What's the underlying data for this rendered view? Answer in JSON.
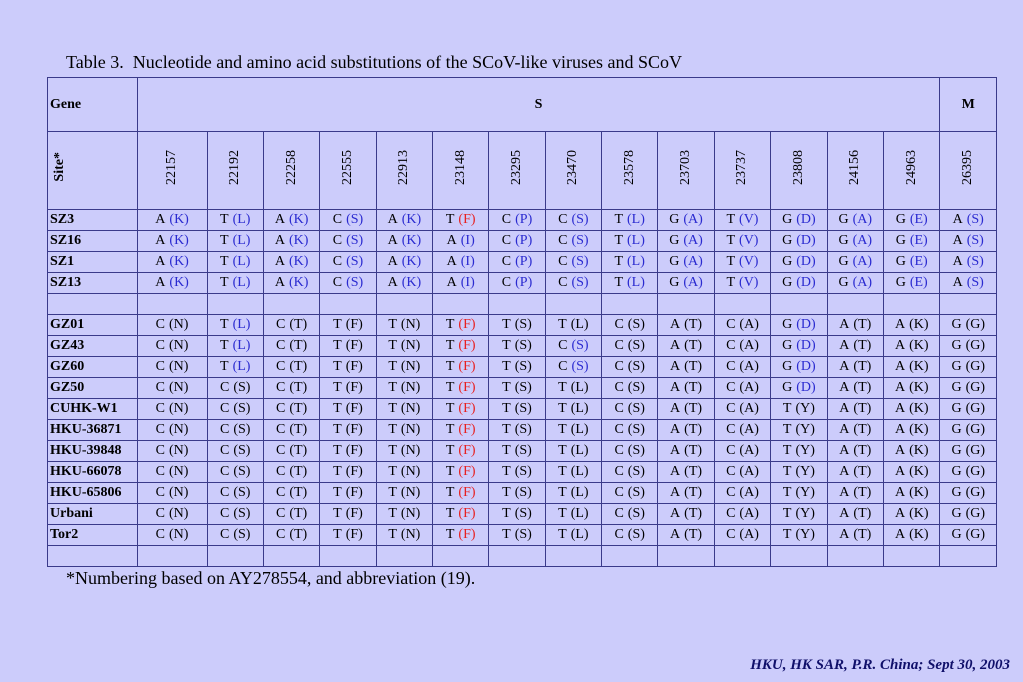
{
  "title": "Table 3.  Nucleotide and amino acid substitutions of the SCoV-like viruses and SCoV",
  "table": {
    "gene_label": "Gene",
    "site_label": "Site*",
    "genes": [
      {
        "name": "S",
        "sites": [
          22157,
          22192,
          22258,
          22555,
          22913,
          23148,
          23295,
          23470,
          23578,
          23703,
          23737,
          23808,
          24156,
          24963
        ]
      },
      {
        "name": "M",
        "sites": [
          26395
        ]
      }
    ],
    "rows": [
      {
        "name": "SZ3",
        "cells": [
          [
            "A",
            "(K)",
            "#2a2ad0"
          ],
          [
            "T",
            "(L)",
            "#2a2ad0"
          ],
          [
            "A",
            "(K)",
            "#2a2ad0"
          ],
          [
            "C",
            "(S)",
            "#2a2ad0"
          ],
          [
            "A",
            "(K)",
            "#2a2ad0"
          ],
          [
            "T",
            "(F)",
            "#e82020"
          ],
          [
            "C",
            "(P)",
            "#2a2ad0"
          ],
          [
            "C",
            "(S)",
            "#2a2ad0"
          ],
          [
            "T",
            "(L)",
            "#2a2ad0"
          ],
          [
            "G",
            "(A)",
            "#2a2ad0"
          ],
          [
            "T",
            "(V)",
            "#2a2ad0"
          ],
          [
            "G",
            "(D)",
            "#2a2ad0"
          ],
          [
            "G",
            "(A)",
            "#2a2ad0"
          ],
          [
            "G",
            "(E)",
            "#2a2ad0"
          ],
          [
            "A",
            "(S)",
            "#2a2ad0"
          ]
        ]
      },
      {
        "name": "SZ16",
        "cells": [
          [
            "A",
            "(K)",
            "#2a2ad0"
          ],
          [
            "T",
            "(L)",
            "#2a2ad0"
          ],
          [
            "A",
            "(K)",
            "#2a2ad0"
          ],
          [
            "C",
            "(S)",
            "#2a2ad0"
          ],
          [
            "A",
            "(K)",
            "#2a2ad0"
          ],
          [
            "A",
            "(I)",
            "#2a2ad0"
          ],
          [
            "C",
            "(P)",
            "#2a2ad0"
          ],
          [
            "C",
            "(S)",
            "#2a2ad0"
          ],
          [
            "T",
            "(L)",
            "#2a2ad0"
          ],
          [
            "G",
            "(A)",
            "#2a2ad0"
          ],
          [
            "T",
            "(V)",
            "#2a2ad0"
          ],
          [
            "G",
            "(D)",
            "#2a2ad0"
          ],
          [
            "G",
            "(A)",
            "#2a2ad0"
          ],
          [
            "G",
            "(E)",
            "#2a2ad0"
          ],
          [
            "A",
            "(S)",
            "#2a2ad0"
          ]
        ]
      },
      {
        "name": "SZ1",
        "cells": [
          [
            "A",
            "(K)",
            "#2a2ad0"
          ],
          [
            "T",
            "(L)",
            "#2a2ad0"
          ],
          [
            "A",
            "(K)",
            "#2a2ad0"
          ],
          [
            "C",
            "(S)",
            "#2a2ad0"
          ],
          [
            "A",
            "(K)",
            "#2a2ad0"
          ],
          [
            "A",
            "(I)",
            "#2a2ad0"
          ],
          [
            "C",
            "(P)",
            "#2a2ad0"
          ],
          [
            "C",
            "(S)",
            "#2a2ad0"
          ],
          [
            "T",
            "(L)",
            "#2a2ad0"
          ],
          [
            "G",
            "(A)",
            "#2a2ad0"
          ],
          [
            "T",
            "(V)",
            "#2a2ad0"
          ],
          [
            "G",
            "(D)",
            "#2a2ad0"
          ],
          [
            "G",
            "(A)",
            "#2a2ad0"
          ],
          [
            "G",
            "(E)",
            "#2a2ad0"
          ],
          [
            "A",
            "(S)",
            "#2a2ad0"
          ]
        ]
      },
      {
        "name": "SZ13",
        "cells": [
          [
            "A",
            "(K)",
            "#2a2ad0"
          ],
          [
            "T",
            "(L)",
            "#2a2ad0"
          ],
          [
            "A",
            "(K)",
            "#2a2ad0"
          ],
          [
            "C",
            "(S)",
            "#2a2ad0"
          ],
          [
            "A",
            "(K)",
            "#2a2ad0"
          ],
          [
            "A",
            "(I)",
            "#2a2ad0"
          ],
          [
            "C",
            "(P)",
            "#2a2ad0"
          ],
          [
            "C",
            "(S)",
            "#2a2ad0"
          ],
          [
            "T",
            "(L)",
            "#2a2ad0"
          ],
          [
            "G",
            "(A)",
            "#2a2ad0"
          ],
          [
            "T",
            "(V)",
            "#2a2ad0"
          ],
          [
            "G",
            "(D)",
            "#2a2ad0"
          ],
          [
            "G",
            "(A)",
            "#2a2ad0"
          ],
          [
            "G",
            "(E)",
            "#2a2ad0"
          ],
          [
            "A",
            "(S)",
            "#2a2ad0"
          ]
        ]
      },
      null,
      {
        "name": "GZ01",
        "cells": [
          [
            "C",
            "(N)"
          ],
          [
            "T",
            "(L)",
            "#2a2ad0"
          ],
          [
            "C",
            "(T)"
          ],
          [
            "T",
            "(F)"
          ],
          [
            "T",
            "(N)"
          ],
          [
            "T",
            "(F)",
            "#e82020"
          ],
          [
            "T",
            "(S)"
          ],
          [
            "T",
            "(L)"
          ],
          [
            "C",
            "(S)"
          ],
          [
            "A",
            "(T)"
          ],
          [
            "C",
            "(A)"
          ],
          [
            "G",
            "(D)",
            "#2a2ad0"
          ],
          [
            "A",
            "(T)"
          ],
          [
            "A",
            "(K)"
          ],
          [
            "G",
            "(G)"
          ]
        ]
      },
      {
        "name": "GZ43",
        "cells": [
          [
            "C",
            "(N)"
          ],
          [
            "T",
            "(L)",
            "#2a2ad0"
          ],
          [
            "C",
            "(T)"
          ],
          [
            "T",
            "(F)"
          ],
          [
            "T",
            "(N)"
          ],
          [
            "T",
            "(F)",
            "#e82020"
          ],
          [
            "T",
            "(S)"
          ],
          [
            "C",
            "(S)",
            "#2a2ad0"
          ],
          [
            "C",
            "(S)"
          ],
          [
            "A",
            "(T)"
          ],
          [
            "C",
            "(A)"
          ],
          [
            "G",
            "(D)",
            "#2a2ad0"
          ],
          [
            "A",
            "(T)"
          ],
          [
            "A",
            "(K)"
          ],
          [
            "G",
            "(G)"
          ]
        ]
      },
      {
        "name": "GZ60",
        "cells": [
          [
            "C",
            "(N)"
          ],
          [
            "T",
            "(L)",
            "#2a2ad0"
          ],
          [
            "C",
            "(T)"
          ],
          [
            "T",
            "(F)"
          ],
          [
            "T",
            "(N)"
          ],
          [
            "T",
            "(F)",
            "#e82020"
          ],
          [
            "T",
            "(S)"
          ],
          [
            "C",
            "(S)",
            "#2a2ad0"
          ],
          [
            "C",
            "(S)"
          ],
          [
            "A",
            "(T)"
          ],
          [
            "C",
            "(A)"
          ],
          [
            "G",
            "(D)",
            "#2a2ad0"
          ],
          [
            "A",
            "(T)"
          ],
          [
            "A",
            "(K)"
          ],
          [
            "G",
            "(G)"
          ]
        ]
      },
      {
        "name": "GZ50",
        "cells": [
          [
            "C",
            "(N)"
          ],
          [
            "C",
            "(S)"
          ],
          [
            "C",
            "(T)"
          ],
          [
            "T",
            "(F)"
          ],
          [
            "T",
            "(N)"
          ],
          [
            "T",
            "(F)",
            "#e82020"
          ],
          [
            "T",
            "(S)"
          ],
          [
            "T",
            "(L)"
          ],
          [
            "C",
            "(S)"
          ],
          [
            "A",
            "(T)"
          ],
          [
            "C",
            "(A)"
          ],
          [
            "G",
            "(D)",
            "#2a2ad0"
          ],
          [
            "A",
            "(T)"
          ],
          [
            "A",
            "(K)"
          ],
          [
            "G",
            "(G)"
          ]
        ]
      },
      {
        "name": "CUHK-W1",
        "cells": [
          [
            "C",
            "(N)"
          ],
          [
            "C",
            "(S)"
          ],
          [
            "C",
            "(T)"
          ],
          [
            "T",
            "(F)"
          ],
          [
            "T",
            "(N)"
          ],
          [
            "T",
            "(F)",
            "#e82020"
          ],
          [
            "T",
            "(S)"
          ],
          [
            "T",
            "(L)"
          ],
          [
            "C",
            "(S)"
          ],
          [
            "A",
            "(T)"
          ],
          [
            "C",
            "(A)"
          ],
          [
            "T",
            "(Y)"
          ],
          [
            "A",
            "(T)"
          ],
          [
            "A",
            "(K)"
          ],
          [
            "G",
            "(G)"
          ]
        ]
      },
      {
        "name": "HKU-36871",
        "cells": [
          [
            "C",
            "(N)"
          ],
          [
            "C",
            "(S)"
          ],
          [
            "C",
            "(T)"
          ],
          [
            "T",
            "(F)"
          ],
          [
            "T",
            "(N)"
          ],
          [
            "T",
            "(F)",
            "#e82020"
          ],
          [
            "T",
            "(S)"
          ],
          [
            "T",
            "(L)"
          ],
          [
            "C",
            "(S)"
          ],
          [
            "A",
            "(T)"
          ],
          [
            "C",
            "(A)"
          ],
          [
            "T",
            "(Y)"
          ],
          [
            "A",
            "(T)"
          ],
          [
            "A",
            "(K)"
          ],
          [
            "G",
            "(G)"
          ]
        ]
      },
      {
        "name": "HKU-39848",
        "cells": [
          [
            "C",
            "(N)"
          ],
          [
            "C",
            "(S)"
          ],
          [
            "C",
            "(T)"
          ],
          [
            "T",
            "(F)"
          ],
          [
            "T",
            "(N)"
          ],
          [
            "T",
            "(F)",
            "#e82020"
          ],
          [
            "T",
            "(S)"
          ],
          [
            "T",
            "(L)"
          ],
          [
            "C",
            "(S)"
          ],
          [
            "A",
            "(T)"
          ],
          [
            "C",
            "(A)"
          ],
          [
            "T",
            "(Y)"
          ],
          [
            "A",
            "(T)"
          ],
          [
            "A",
            "(K)"
          ],
          [
            "G",
            "(G)"
          ]
        ]
      },
      {
        "name": "HKU-66078",
        "cells": [
          [
            "C",
            "(N)"
          ],
          [
            "C",
            "(S)"
          ],
          [
            "C",
            "(T)"
          ],
          [
            "T",
            "(F)"
          ],
          [
            "T",
            "(N)"
          ],
          [
            "T",
            "(F)",
            "#e82020"
          ],
          [
            "T",
            "(S)"
          ],
          [
            "T",
            "(L)"
          ],
          [
            "C",
            "(S)"
          ],
          [
            "A",
            "(T)"
          ],
          [
            "C",
            "(A)"
          ],
          [
            "T",
            "(Y)"
          ],
          [
            "A",
            "(T)"
          ],
          [
            "A",
            "(K)"
          ],
          [
            "G",
            "(G)"
          ]
        ]
      },
      {
        "name": "HKU-65806",
        "cells": [
          [
            "C",
            "(N)"
          ],
          [
            "C",
            "(S)"
          ],
          [
            "C",
            "(T)"
          ],
          [
            "T",
            "(F)"
          ],
          [
            "T",
            "(N)"
          ],
          [
            "T",
            "(F)",
            "#e82020"
          ],
          [
            "T",
            "(S)"
          ],
          [
            "T",
            "(L)"
          ],
          [
            "C",
            "(S)"
          ],
          [
            "A",
            "(T)"
          ],
          [
            "C",
            "(A)"
          ],
          [
            "T",
            "(Y)"
          ],
          [
            "A",
            "(T)"
          ],
          [
            "A",
            "(K)"
          ],
          [
            "G",
            "(G)"
          ]
        ]
      },
      {
        "name": "Urbani",
        "cells": [
          [
            "C",
            "(N)"
          ],
          [
            "C",
            "(S)"
          ],
          [
            "C",
            "(T)"
          ],
          [
            "T",
            "(F)"
          ],
          [
            "T",
            "(N)"
          ],
          [
            "T",
            "(F)",
            "#e82020"
          ],
          [
            "T",
            "(S)"
          ],
          [
            "T",
            "(L)"
          ],
          [
            "C",
            "(S)"
          ],
          [
            "A",
            "(T)"
          ],
          [
            "C",
            "(A)"
          ],
          [
            "T",
            "(Y)"
          ],
          [
            "A",
            "(T)"
          ],
          [
            "A",
            "(K)"
          ],
          [
            "G",
            "(G)"
          ]
        ]
      },
      {
        "name": "Tor2",
        "cells": [
          [
            "C",
            "(N)"
          ],
          [
            "C",
            "(S)"
          ],
          [
            "C",
            "(T)"
          ],
          [
            "T",
            "(F)"
          ],
          [
            "T",
            "(N)"
          ],
          [
            "T",
            "(F)",
            "#e82020"
          ],
          [
            "T",
            "(S)"
          ],
          [
            "T",
            "(L)"
          ],
          [
            "C",
            "(S)"
          ],
          [
            "A",
            "(T)"
          ],
          [
            "C",
            "(A)"
          ],
          [
            "T",
            "(Y)"
          ],
          [
            "A",
            "(T)"
          ],
          [
            "A",
            "(K)"
          ],
          [
            "G",
            "(G)"
          ]
        ]
      },
      null
    ]
  },
  "footnote": "*Numbering based on AY278554, and abbreviation (19).",
  "credit": "HKU, HK SAR, P.R. China; Sept 30, 2003"
}
